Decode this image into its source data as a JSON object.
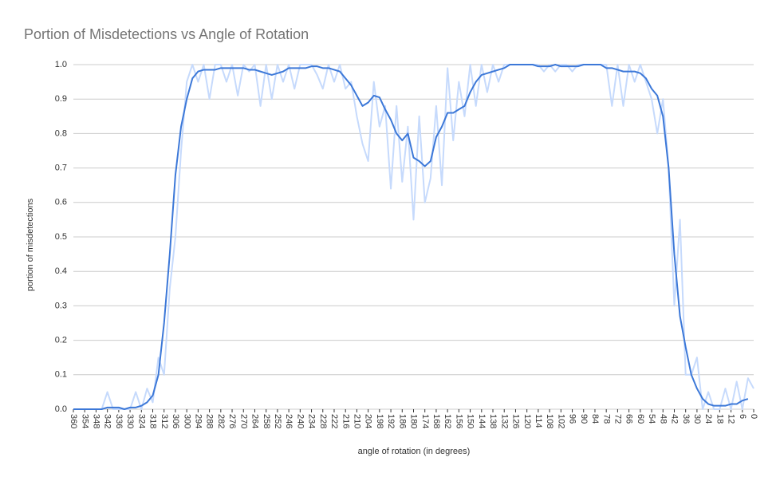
{
  "chart_data": {
    "type": "line",
    "title": "Portion of Misdetections vs Angle of Rotation",
    "x_label": "angle of rotation (in degrees)",
    "y_label": "portion of misdetections",
    "x": [
      360,
      357,
      354,
      351,
      348,
      345,
      342,
      339,
      336,
      333,
      330,
      327,
      324,
      321,
      318,
      315,
      312,
      309,
      306,
      303,
      300,
      297,
      294,
      291,
      288,
      285,
      282,
      279,
      276,
      273,
      270,
      267,
      264,
      261,
      258,
      255,
      252,
      249,
      246,
      243,
      240,
      237,
      234,
      231,
      228,
      225,
      222,
      219,
      216,
      213,
      210,
      207,
      204,
      201,
      198,
      195,
      192,
      189,
      186,
      183,
      180,
      177,
      174,
      171,
      168,
      165,
      162,
      159,
      156,
      153,
      150,
      147,
      144,
      141,
      138,
      135,
      132,
      129,
      126,
      123,
      120,
      117,
      114,
      111,
      108,
      105,
      102,
      99,
      96,
      93,
      90,
      87,
      84,
      81,
      78,
      75,
      72,
      69,
      66,
      63,
      60,
      57,
      54,
      51,
      48,
      45,
      42,
      39,
      36,
      33,
      30,
      27,
      24,
      21,
      18,
      15,
      12,
      9,
      6,
      3,
      0
    ],
    "series": [
      {
        "color": "#c6dafc",
        "values": [
          0,
          0,
          0,
          0,
          0,
          0,
          0.05,
          0,
          0,
          0,
          0,
          0.05,
          0,
          0.06,
          0.02,
          0.15,
          0.1,
          0.35,
          0.5,
          0.75,
          0.95,
          1,
          0.95,
          1,
          0.9,
          1,
          1,
          0.95,
          1,
          0.91,
          1,
          0.98,
          1,
          0.88,
          1,
          0.9,
          1,
          0.95,
          1,
          0.93,
          1,
          1,
          1,
          0.97,
          0.93,
          1,
          0.95,
          1,
          0.93,
          0.95,
          0.85,
          0.77,
          0.72,
          0.95,
          0.82,
          0.88,
          0.64,
          0.88,
          0.66,
          0.82,
          0.55,
          0.85,
          0.6,
          0.67,
          0.88,
          0.65,
          0.99,
          0.78,
          0.95,
          0.85,
          1,
          0.88,
          1,
          0.92,
          1,
          0.95,
          1,
          1,
          1,
          1,
          1,
          1,
          1,
          0.98,
          1,
          0.98,
          1,
          1,
          0.98,
          1,
          1,
          1,
          1,
          1,
          1,
          0.88,
          1,
          0.88,
          1,
          0.95,
          1,
          0.95,
          0.9,
          0.8,
          0.9,
          0.7,
          0.3,
          0.55,
          0.1,
          0.1,
          0.15,
          0,
          0.05,
          0,
          0,
          0.06,
          0,
          0.08,
          0,
          0.09,
          0.06
        ]
      },
      {
        "color": "#3c78d8",
        "values": [
          0,
          0,
          0,
          0,
          0,
          0,
          0.005,
          0.005,
          0.005,
          0,
          0.005,
          0.005,
          0.01,
          0.02,
          0.04,
          0.1,
          0.25,
          0.45,
          0.68,
          0.82,
          0.9,
          0.96,
          0.98,
          0.985,
          0.985,
          0.985,
          0.99,
          0.99,
          0.99,
          0.99,
          0.99,
          0.985,
          0.985,
          0.98,
          0.975,
          0.97,
          0.975,
          0.98,
          0.99,
          0.99,
          0.99,
          0.99,
          0.995,
          0.995,
          0.99,
          0.99,
          0.985,
          0.98,
          0.96,
          0.94,
          0.91,
          0.88,
          0.89,
          0.91,
          0.905,
          0.87,
          0.84,
          0.8,
          0.78,
          0.8,
          0.73,
          0.72,
          0.705,
          0.72,
          0.79,
          0.82,
          0.86,
          0.86,
          0.87,
          0.88,
          0.92,
          0.95,
          0.97,
          0.975,
          0.98,
          0.985,
          0.99,
          1,
          1,
          1,
          1,
          1,
          0.995,
          0.995,
          0.995,
          1,
          0.995,
          0.995,
          0.995,
          0.995,
          1,
          1,
          1,
          1,
          0.99,
          0.99,
          0.985,
          0.98,
          0.98,
          0.98,
          0.975,
          0.96,
          0.93,
          0.91,
          0.85,
          0.7,
          0.45,
          0.27,
          0.18,
          0.1,
          0.06,
          0.03,
          0.015,
          0.01,
          0.01,
          0.01,
          0.015,
          0.015,
          0.025,
          0.03,
          null
        ]
      }
    ],
    "xlim": [
      360,
      0
    ],
    "xticks": [
      360,
      354,
      348,
      342,
      336,
      330,
      324,
      318,
      312,
      306,
      300,
      294,
      288,
      282,
      276,
      270,
      264,
      258,
      252,
      246,
      240,
      234,
      228,
      222,
      216,
      210,
      204,
      198,
      192,
      186,
      180,
      174,
      168,
      162,
      156,
      150,
      144,
      138,
      132,
      126,
      120,
      114,
      108,
      102,
      96,
      90,
      84,
      78,
      72,
      66,
      60,
      54,
      48,
      42,
      36,
      30,
      24,
      18,
      12,
      6,
      0
    ],
    "ylim": [
      0,
      1
    ],
    "yticks": [
      {
        "value": 0,
        "label": "0.0"
      },
      {
        "value": 0.1,
        "label": "0.1"
      },
      {
        "value": 0.2,
        "label": "0.2"
      },
      {
        "value": 0.3,
        "label": "0.3"
      },
      {
        "value": 0.4,
        "label": "0.4"
      },
      {
        "value": 0.5,
        "label": "0.5"
      },
      {
        "value": 0.6,
        "label": "0.6"
      },
      {
        "value": 0.7,
        "label": "0.7"
      },
      {
        "value": 0.8,
        "label": "0.8"
      },
      {
        "value": 0.9,
        "label": "0.9"
      },
      {
        "value": 1,
        "label": "1.0"
      }
    ],
    "grid": true
  }
}
